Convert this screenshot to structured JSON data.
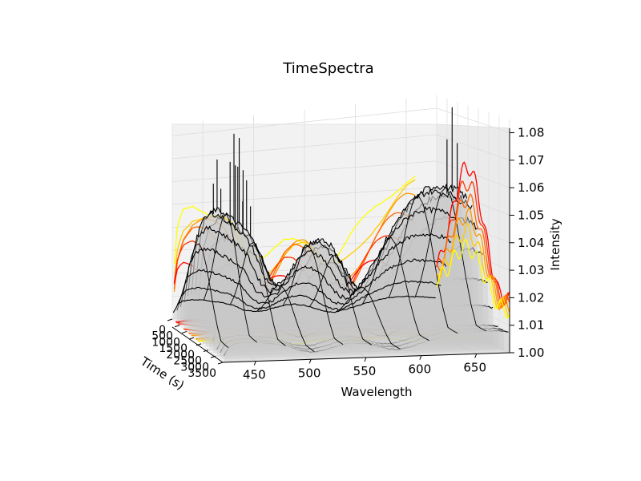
{
  "chart_data": {
    "type": "3d-line-surface",
    "title": "TimeSpectra",
    "xlabel": "Wavelength",
    "ylabel": "Time (s)",
    "zlabel": "Intensity",
    "xlim": [
      420,
      680
    ],
    "ylim": [
      0,
      3500
    ],
    "zlim": [
      1.0,
      1.085
    ],
    "xticks": [
      450,
      500,
      550,
      600,
      650
    ],
    "yticks": [
      0,
      500,
      1000,
      1500,
      2000,
      2500,
      3000,
      3500
    ],
    "zticks": [
      "1.00",
      "1.01",
      "1.02",
      "1.03",
      "1.04",
      "1.05",
      "1.06",
      "1.07",
      "1.08"
    ],
    "grid": true,
    "peak_time": 1500,
    "series_times": [
      0,
      250,
      500,
      750,
      1000,
      1250,
      1500,
      1750,
      2000,
      2250,
      2500,
      2750,
      3000,
      3250,
      3500
    ],
    "spectrum_wavelengths": [
      420,
      425,
      430,
      440,
      450,
      460,
      470,
      480,
      490,
      500,
      510,
      520,
      530,
      540,
      550,
      560,
      570,
      580,
      590,
      600,
      610,
      620,
      630,
      640,
      650,
      660,
      670,
      680
    ],
    "peak_spectrum": [
      1.012,
      1.04,
      1.05,
      1.054,
      1.052,
      1.048,
      1.044,
      1.037,
      1.025,
      1.02,
      1.022,
      1.03,
      1.037,
      1.039,
      1.036,
      1.028,
      1.02,
      1.018,
      1.024,
      1.032,
      1.04,
      1.047,
      1.052,
      1.055,
      1.056,
      1.055,
      1.054,
      1.05
    ],
    "spikes": [
      {
        "wavelength": 442,
        "intensity": 1.075
      },
      {
        "wavelength": 458,
        "intensity": 1.085
      },
      {
        "wavelength": 463,
        "intensity": 1.083
      },
      {
        "wavelength": 470,
        "intensity": 1.065
      },
      {
        "wavelength": 665,
        "intensity": 1.085
      }
    ],
    "colormap": [
      "#ffff00",
      "#ffcc00",
      "#ff9900",
      "#ff6600",
      "#ff3300",
      "#ff0000"
    ]
  }
}
